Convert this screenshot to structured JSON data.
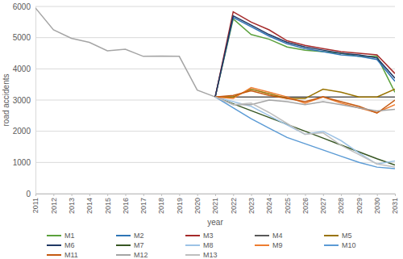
{
  "chart_data": {
    "type": "line",
    "x_label": "year",
    "y_label": "road accidents",
    "x": [
      2011,
      2012,
      2013,
      2014,
      2015,
      2016,
      2017,
      2018,
      2019,
      2020,
      2021,
      2022,
      2023,
      2024,
      2025,
      2026,
      2027,
      2028,
      2029,
      2030,
      2031
    ],
    "xlim": [
      2011,
      2031
    ],
    "xticks": [
      2011,
      2012,
      2013,
      2014,
      2015,
      2016,
      2017,
      2018,
      2019,
      2020,
      2021,
      2022,
      2023,
      2024,
      2025,
      2026,
      2027,
      2028,
      2029,
      2030,
      2031
    ],
    "ylim": [
      0,
      6000
    ],
    "yticks": [
      0,
      1000,
      2000,
      3000,
      4000,
      5000,
      6000
    ],
    "grid": true,
    "legend": "bottom",
    "series": [
      {
        "color": "#a5a5a5",
        "values": [
          5950,
          5250,
          4980,
          4850,
          4580,
          4630,
          4400,
          4410,
          4400,
          3320,
          3100,
          null,
          null,
          null,
          null,
          null,
          null,
          null,
          null,
          null,
          null
        ]
      },
      {
        "name": "M1",
        "color": "#5ba13c",
        "values": [
          null,
          null,
          null,
          null,
          null,
          null,
          null,
          null,
          null,
          null,
          3100,
          5600,
          5100,
          4950,
          4700,
          4600,
          4550,
          4500,
          4400,
          4400,
          3250
        ]
      },
      {
        "name": "M2",
        "color": "#2e75b6",
        "values": [
          null,
          null,
          null,
          null,
          null,
          null,
          null,
          null,
          null,
          null,
          3100,
          5650,
          5350,
          5050,
          4800,
          4650,
          4550,
          4450,
          4400,
          4300,
          3600
        ]
      },
      {
        "name": "M3",
        "color": "#a52a2a",
        "values": [
          null,
          null,
          null,
          null,
          null,
          null,
          null,
          null,
          null,
          null,
          3100,
          5830,
          5500,
          5250,
          4900,
          4750,
          4650,
          4550,
          4500,
          4450,
          3850
        ]
      },
      {
        "name": "M4",
        "color": "#595959",
        "values": [
          null,
          null,
          null,
          null,
          null,
          null,
          null,
          null,
          null,
          null,
          3100,
          3100,
          3100,
          3100,
          3100,
          3100,
          3100,
          3100,
          3100,
          3100,
          3100
        ]
      },
      {
        "name": "M5",
        "color": "#997300",
        "values": [
          null,
          null,
          null,
          null,
          null,
          null,
          null,
          null,
          null,
          null,
          3100,
          3100,
          3350,
          3200,
          3050,
          3050,
          3350,
          3250,
          3100,
          3100,
          3350
        ]
      },
      {
        "name": "M6",
        "color": "#203864",
        "values": [
          null,
          null,
          null,
          null,
          null,
          null,
          null,
          null,
          null,
          null,
          3100,
          5700,
          5400,
          5100,
          4850,
          4700,
          4600,
          4500,
          4450,
          4350,
          3700
        ]
      },
      {
        "name": "M7",
        "color": "#375623",
        "values": [
          null,
          null,
          null,
          null,
          null,
          null,
          null,
          null,
          null,
          null,
          3100,
          2880,
          2660,
          2440,
          2220,
          2000,
          1780,
          1560,
          1340,
          1120,
          920
        ]
      },
      {
        "name": "M8",
        "color": "#9dc3e6",
        "values": [
          null,
          null,
          null,
          null,
          null,
          null,
          null,
          null,
          null,
          null,
          3100,
          2950,
          2800,
          2500,
          2200,
          1900,
          2000,
          1700,
          1300,
          950,
          1050
        ]
      },
      {
        "name": "M9",
        "color": "#ed7d31",
        "values": [
          null,
          null,
          null,
          null,
          null,
          null,
          null,
          null,
          null,
          null,
          3100,
          3050,
          3400,
          3250,
          3100,
          2900,
          3100,
          2900,
          2750,
          2600,
          2850
        ]
      },
      {
        "name": "M10",
        "color": "#5b9bd5",
        "values": [
          null,
          null,
          null,
          null,
          null,
          null,
          null,
          null,
          null,
          null,
          3100,
          2750,
          2400,
          2100,
          1800,
          1600,
          1400,
          1200,
          1000,
          850,
          800
        ]
      },
      {
        "name": "M11",
        "color": "#c55a11",
        "values": [
          null,
          null,
          null,
          null,
          null,
          null,
          null,
          null,
          null,
          null,
          3100,
          3150,
          3300,
          3150,
          3050,
          2950,
          3100,
          2950,
          2800,
          2580,
          3000
        ]
      },
      {
        "name": "M12",
        "color": "#a5a5a5",
        "values": [
          null,
          null,
          null,
          null,
          null,
          null,
          null,
          null,
          null,
          null,
          3100,
          2850,
          2850,
          3000,
          2950,
          2850,
          2950,
          2850,
          2750,
          2650,
          2700
        ]
      },
      {
        "name": "M13",
        "color": "#bfbfbf",
        "values": [
          null,
          null,
          null,
          null,
          null,
          null,
          null,
          null,
          null,
          null,
          3100,
          2850,
          2900,
          2600,
          2250,
          1900,
          1950,
          1550,
          1250,
          950,
          850
        ]
      }
    ]
  }
}
